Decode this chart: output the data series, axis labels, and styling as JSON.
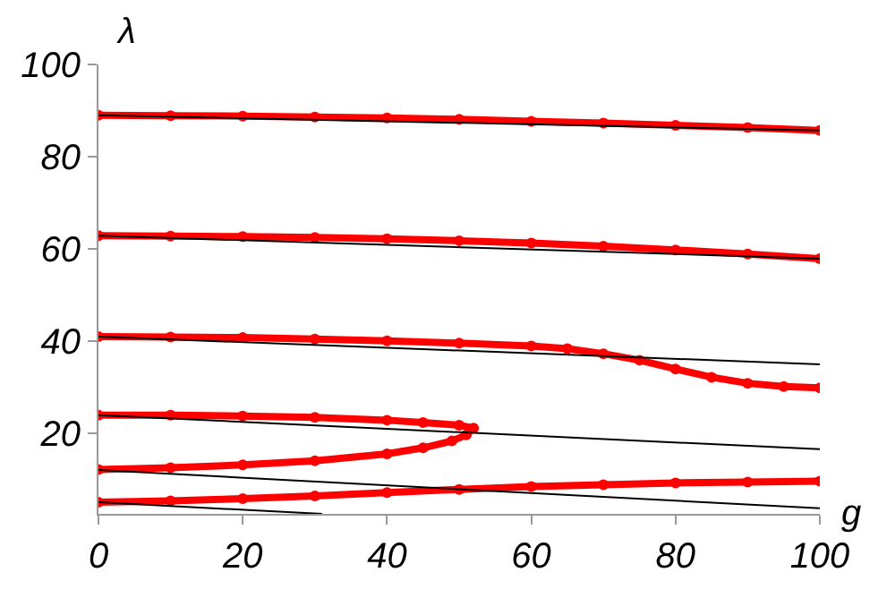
{
  "chart_data": {
    "type": "line",
    "xlabel": "g",
    "ylabel": "λ",
    "xlim": [
      0,
      100
    ],
    "ylim": [
      2.6,
      100
    ],
    "xticks": [
      0,
      20,
      40,
      60,
      80,
      100
    ],
    "yticks": [
      20,
      40,
      60,
      80,
      100
    ],
    "series": [
      {
        "color": "#ff0000",
        "marker": "circle",
        "x": [
          0,
          10,
          20,
          30,
          40,
          50,
          60,
          70,
          80,
          90,
          100
        ],
        "values": [
          89.0,
          88.9,
          88.8,
          88.6,
          88.4,
          88.1,
          87.7,
          87.3,
          86.8,
          86.3,
          85.7
        ]
      },
      {
        "color": "#ff0000",
        "marker": "circle",
        "x": [
          0,
          10,
          20,
          30,
          40,
          50,
          60,
          70,
          80,
          90,
          100
        ],
        "values": [
          62.9,
          62.8,
          62.7,
          62.5,
          62.2,
          61.8,
          61.3,
          60.6,
          59.8,
          58.9,
          57.9
        ]
      },
      {
        "color": "#ff0000",
        "marker": "circle",
        "x": [
          0,
          10,
          20,
          30,
          40,
          50,
          60,
          65,
          70,
          75,
          80,
          85,
          90,
          95,
          100
        ],
        "values": [
          41.0,
          40.9,
          40.8,
          40.5,
          40.1,
          39.6,
          39.0,
          38.4,
          37.3,
          35.9,
          34.0,
          32.2,
          30.9,
          30.2,
          29.9
        ]
      },
      {
        "color": "#ff0000",
        "marker": "circle",
        "x": [
          0,
          10,
          20,
          30,
          40,
          45,
          50,
          52,
          51,
          49,
          45,
          40,
          30,
          20,
          10,
          0
        ],
        "values": [
          24.0,
          24.0,
          23.8,
          23.5,
          22.9,
          22.4,
          21.8,
          21.2,
          19.7,
          18.4,
          16.9,
          15.6,
          14.1,
          13.2,
          12.6,
          12.2
        ]
      },
      {
        "color": "#ff0000",
        "marker": "circle",
        "x": [
          0,
          10,
          20,
          30,
          40,
          50,
          60,
          70,
          80,
          90,
          100
        ],
        "values": [
          5.1,
          5.4,
          5.9,
          6.5,
          7.2,
          7.9,
          8.5,
          8.9,
          9.3,
          9.5,
          9.7
        ]
      },
      {
        "color": "#000000",
        "marker": "none",
        "x": [
          0,
          100
        ],
        "values": [
          89.0,
          85.7
        ]
      },
      {
        "color": "#000000",
        "marker": "none",
        "x": [
          0,
          100
        ],
        "values": [
          62.9,
          57.9
        ]
      },
      {
        "color": "#000000",
        "marker": "none",
        "x": [
          0,
          100
        ],
        "values": [
          41.0,
          35.0
        ]
      },
      {
        "color": "#000000",
        "marker": "none",
        "x": [
          0,
          100
        ],
        "values": [
          24.0,
          16.6
        ]
      },
      {
        "color": "#000000",
        "marker": "none",
        "x": [
          0,
          100
        ],
        "values": [
          12.1,
          3.8
        ]
      },
      {
        "color": "#000000",
        "marker": "none",
        "x": [
          0,
          31
        ],
        "values": [
          5.1,
          2.6
        ]
      }
    ]
  }
}
